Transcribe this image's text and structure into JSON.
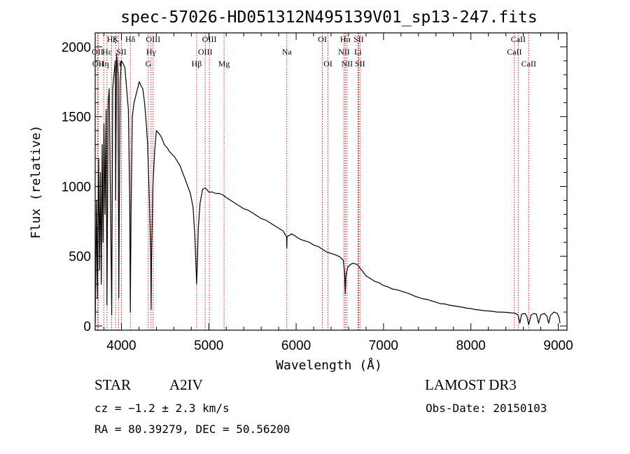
{
  "chart_data": {
    "type": "line",
    "title": "spec-57026-HD051312N495139V01_sp13-247.fits",
    "xlabel": "Wavelength (Å)",
    "ylabel": "Flux (relative)",
    "xlim": [
      3700,
      9100
    ],
    "ylim": [
      -30,
      2100
    ],
    "x_ticks": [
      4000,
      5000,
      6000,
      7000,
      8000,
      9000
    ],
    "y_ticks": [
      0,
      500,
      1000,
      1500,
      2000
    ],
    "grid": false,
    "series": [
      {
        "name": "flux",
        "points": [
          [
            3700,
            20
          ],
          [
            3715,
            900
          ],
          [
            3725,
            200
          ],
          [
            3740,
            1200
          ],
          [
            3750,
            400
          ],
          [
            3760,
            1100
          ],
          [
            3770,
            300
          ],
          [
            3780,
            1300
          ],
          [
            3790,
            600
          ],
          [
            3800,
            1450
          ],
          [
            3812,
            800
          ],
          [
            3825,
            1550
          ],
          [
            3835,
            150
          ],
          [
            3848,
            1600
          ],
          [
            3860,
            1700
          ],
          [
            3875,
            900
          ],
          [
            3889,
            80
          ],
          [
            3900,
            1700
          ],
          [
            3915,
            1800
          ],
          [
            3930,
            1900
          ],
          [
            3934,
            900
          ],
          [
            3945,
            1950
          ],
          [
            3960,
            1800
          ],
          [
            3968,
            600
          ],
          [
            3970,
            200
          ],
          [
            3985,
            1750
          ],
          [
            4000,
            1900
          ],
          [
            4020,
            1880
          ],
          [
            4040,
            1850
          ],
          [
            4060,
            1700
          ],
          [
            4080,
            1550
          ],
          [
            4095,
            900
          ],
          [
            4102,
            100
          ],
          [
            4110,
            800
          ],
          [
            4125,
            1500
          ],
          [
            4145,
            1600
          ],
          [
            4165,
            1650
          ],
          [
            4185,
            1700
          ],
          [
            4205,
            1750
          ],
          [
            4225,
            1720
          ],
          [
            4245,
            1700
          ],
          [
            4265,
            1600
          ],
          [
            4285,
            1450
          ],
          [
            4300,
            1300
          ],
          [
            4320,
            900
          ],
          [
            4335,
            500
          ],
          [
            4340,
            120
          ],
          [
            4345,
            500
          ],
          [
            4360,
            1000
          ],
          [
            4380,
            1250
          ],
          [
            4400,
            1400
          ],
          [
            4430,
            1380
          ],
          [
            4460,
            1350
          ],
          [
            4490,
            1300
          ],
          [
            4520,
            1280
          ],
          [
            4550,
            1250
          ],
          [
            4580,
            1230
          ],
          [
            4610,
            1210
          ],
          [
            4640,
            1180
          ],
          [
            4670,
            1150
          ],
          [
            4700,
            1100
          ],
          [
            4730,
            1050
          ],
          [
            4760,
            1000
          ],
          [
            4790,
            950
          ],
          [
            4820,
            850
          ],
          [
            4840,
            650
          ],
          [
            4855,
            400
          ],
          [
            4861,
            300
          ],
          [
            4867,
            420
          ],
          [
            4880,
            700
          ],
          [
            4900,
            880
          ],
          [
            4930,
            980
          ],
          [
            4960,
            990
          ],
          [
            5000,
            960
          ],
          [
            5040,
            960
          ],
          [
            5080,
            950
          ],
          [
            5120,
            950
          ],
          [
            5160,
            940
          ],
          [
            5200,
            920
          ],
          [
            5250,
            900
          ],
          [
            5300,
            880
          ],
          [
            5350,
            860
          ],
          [
            5400,
            840
          ],
          [
            5450,
            830
          ],
          [
            5500,
            810
          ],
          [
            5550,
            790
          ],
          [
            5600,
            770
          ],
          [
            5650,
            760
          ],
          [
            5700,
            740
          ],
          [
            5750,
            720
          ],
          [
            5800,
            700
          ],
          [
            5850,
            680
          ],
          [
            5890,
            640
          ],
          [
            5893,
            560
          ],
          [
            5896,
            640
          ],
          [
            5950,
            660
          ],
          [
            6000,
            640
          ],
          [
            6050,
            620
          ],
          [
            6100,
            610
          ],
          [
            6150,
            600
          ],
          [
            6200,
            580
          ],
          [
            6250,
            570
          ],
          [
            6300,
            550
          ],
          [
            6350,
            530
          ],
          [
            6400,
            520
          ],
          [
            6450,
            510
          ],
          [
            6500,
            495
          ],
          [
            6540,
            470
          ],
          [
            6555,
            380
          ],
          [
            6563,
            230
          ],
          [
            6570,
            360
          ],
          [
            6590,
            420
          ],
          [
            6620,
            440
          ],
          [
            6650,
            450
          ],
          [
            6700,
            440
          ],
          [
            6750,
            400
          ],
          [
            6800,
            360
          ],
          [
            6850,
            340
          ],
          [
            6900,
            320
          ],
          [
            6950,
            310
          ],
          [
            7000,
            290
          ],
          [
            7050,
            280
          ],
          [
            7100,
            265
          ],
          [
            7150,
            260
          ],
          [
            7200,
            250
          ],
          [
            7250,
            240
          ],
          [
            7300,
            230
          ],
          [
            7350,
            215
          ],
          [
            7400,
            205
          ],
          [
            7450,
            195
          ],
          [
            7500,
            190
          ],
          [
            7550,
            180
          ],
          [
            7600,
            170
          ],
          [
            7650,
            160
          ],
          [
            7700,
            158
          ],
          [
            7750,
            150
          ],
          [
            7800,
            145
          ],
          [
            7850,
            140
          ],
          [
            7900,
            135
          ],
          [
            7950,
            128
          ],
          [
            8000,
            125
          ],
          [
            8050,
            118
          ],
          [
            8100,
            115
          ],
          [
            8150,
            110
          ],
          [
            8200,
            108
          ],
          [
            8250,
            105
          ],
          [
            8300,
            100
          ],
          [
            8350,
            100
          ],
          [
            8400,
            98
          ],
          [
            8450,
            95
          ],
          [
            8500,
            92
          ],
          [
            8540,
            80
          ],
          [
            8560,
            20
          ],
          [
            8580,
            85
          ],
          [
            8620,
            90
          ],
          [
            8640,
            70
          ],
          [
            8662,
            10
          ],
          [
            8690,
            80
          ],
          [
            8720,
            90
          ],
          [
            8750,
            85
          ],
          [
            8775,
            20
          ],
          [
            8800,
            80
          ],
          [
            8840,
            90
          ],
          [
            8870,
            70
          ],
          [
            8890,
            20
          ],
          [
            8910,
            75
          ],
          [
            8950,
            100
          ],
          [
            8990,
            90
          ],
          [
            9010,
            60
          ],
          [
            9020,
            20
          ]
        ]
      }
    ],
    "line_markers": [
      {
        "wavelength": 3727,
        "label": "OII",
        "row": 1
      },
      {
        "wavelength": 3734,
        "label": "OII",
        "row": 2
      },
      {
        "wavelength": 3798,
        "label": "Hη",
        "row": 2
      },
      {
        "wavelength": 3835,
        "label": "Hε",
        "row": 1
      },
      {
        "wavelength": 3889,
        "label": "Hζ",
        "row": 0
      },
      {
        "wavelength": 3934,
        "label": "K",
        "row": 0
      },
      {
        "wavelength": 3968,
        "label": "H",
        "row": 2
      },
      {
        "wavelength": 4000,
        "label": "SII",
        "row": 1
      },
      {
        "wavelength": 4102,
        "label": "Hδ",
        "row": 0
      },
      {
        "wavelength": 4308,
        "label": "G",
        "row": 2
      },
      {
        "wavelength": 4340,
        "label": "Hγ",
        "row": 1
      },
      {
        "wavelength": 4363,
        "label": "OIII",
        "row": 0
      },
      {
        "wavelength": 4861,
        "label": "Hβ",
        "row": 2
      },
      {
        "wavelength": 4959,
        "label": "OIII",
        "row": 1
      },
      {
        "wavelength": 5007,
        "label": "OIII",
        "row": 0
      },
      {
        "wavelength": 5175,
        "label": "Mg",
        "row": 2
      },
      {
        "wavelength": 5893,
        "label": "Na",
        "row": 1
      },
      {
        "wavelength": 6300,
        "label": "OI",
        "row": 0
      },
      {
        "wavelength": 6364,
        "label": "OI",
        "row": 2
      },
      {
        "wavelength": 6548,
        "label": "NII",
        "row": 1
      },
      {
        "wavelength": 6563,
        "label": "Hα",
        "row": 0
      },
      {
        "wavelength": 6583,
        "label": "NII",
        "row": 2
      },
      {
        "wavelength": 6708,
        "label": "Li",
        "row": 1
      },
      {
        "wavelength": 6716,
        "label": "SII",
        "row": 0
      },
      {
        "wavelength": 6731,
        "label": "SII",
        "row": 2
      },
      {
        "wavelength": 8498,
        "label": "CaII",
        "row": 1
      },
      {
        "wavelength": 8542,
        "label": "CaII",
        "row": 0
      },
      {
        "wavelength": 8662,
        "label": "CaII",
        "row": 2
      }
    ]
  },
  "info": {
    "object_class": "STAR",
    "subclass": "A2IV",
    "survey": "LAMOST DR3",
    "redshift": "cz = −1.2 ± 2.3 km/s",
    "obs_date": "Obs-Date: 20150103",
    "coordinates": "RA =  80.39279, DEC =  50.56200"
  },
  "colors": {
    "spectrum": "#000000",
    "marker_line": "#cc0000",
    "axes": "#000000",
    "background": "#ffffff"
  }
}
